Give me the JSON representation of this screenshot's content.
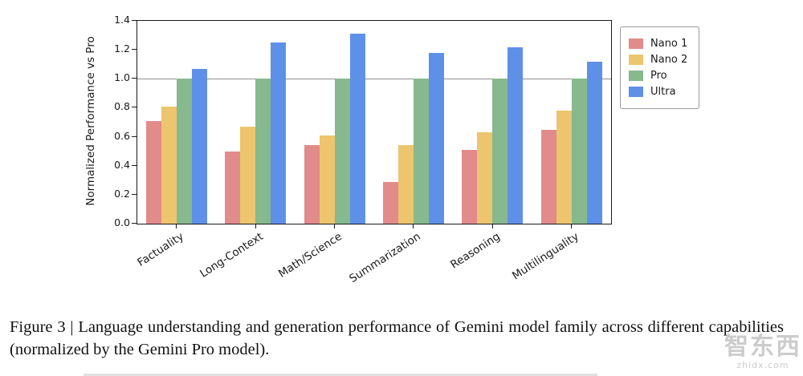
{
  "chart_data": {
    "type": "bar",
    "title": "",
    "ylabel": "Normalized Performance vs Pro",
    "xlabel": "",
    "ylim": [
      0.0,
      1.4
    ],
    "yticks": [
      0.0,
      0.2,
      0.4,
      0.6,
      0.8,
      1.0,
      1.2,
      1.4
    ],
    "grid": false,
    "reference_line": 1.0,
    "legend_position": "outside upper right",
    "categories": [
      "Factuality",
      "Long-Context",
      "Math/Science",
      "Summarization",
      "Reasoning",
      "Multilinguality"
    ],
    "series": [
      {
        "name": "Nano 1",
        "color": "#e28b8b",
        "values": [
          0.71,
          0.5,
          0.54,
          0.29,
          0.51,
          0.65
        ]
      },
      {
        "name": "Nano 2",
        "color": "#ecc56e",
        "values": [
          0.81,
          0.67,
          0.61,
          0.54,
          0.63,
          0.78
        ]
      },
      {
        "name": "Pro",
        "color": "#86b98e",
        "values": [
          1.0,
          1.0,
          1.0,
          1.0,
          1.0,
          1.0
        ]
      },
      {
        "name": "Ultra",
        "color": "#5f90e8",
        "values": [
          1.07,
          1.25,
          1.31,
          1.18,
          1.22,
          1.12
        ]
      }
    ]
  },
  "caption": "Figure 3 | Language understanding and generation performance of Gemini model family across different capabilities (normalized by the Gemini Pro model).",
  "watermark": {
    "text": "智东西",
    "subtext": "zhidx.com"
  }
}
